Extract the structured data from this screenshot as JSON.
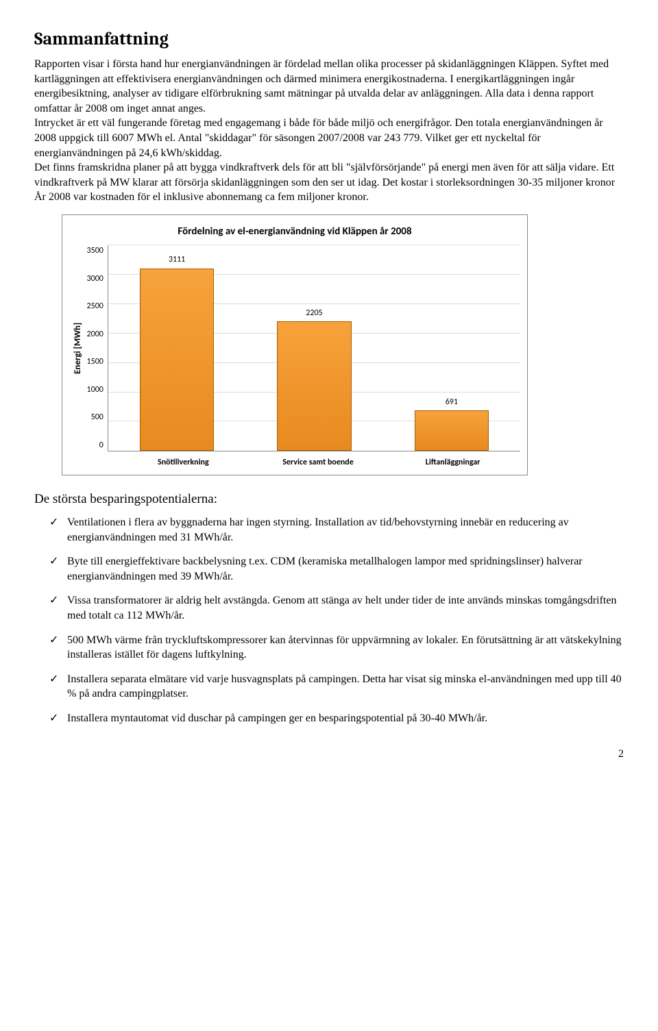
{
  "heading": "Sammanfattning",
  "paragraph": "Rapporten visar i första hand hur energianvändningen är fördelad mellan olika processer på skidanläggningen Kläppen. Syftet med kartläggningen att effektivisera energianvändningen och därmed minimera energikostnaderna. I energikartläggningen ingår energibesiktning, analyser av tidigare elförbrukning samt mätningar på utvalda delar av anläggningen. Alla data i denna rapport omfattar år 2008 om inget annat anges.\nIntrycket är ett väl fungerande företag med engagemang i både för både miljö och energifrågor. Den totala energianvändningen år 2008 uppgick till 6007 MWh el. Antal \"skiddagar\" för säsongen 2007/2008 var 243 779. Vilket ger ett nyckeltal för energianvändningen på 24,6 kWh/skiddag.\nDet finns framskridna planer på att bygga vindkraftverk dels för att bli \"självförsörjande\" på energi men även för att sälja vidare. Ett vindkraftverk på MW klarar att försörja skidanläggningen som den ser ut idag. Det kostar i storleksordningen 30-35 miljoner kronor År 2008 var kostnaden för el inklusive abonnemang ca fem miljoner kronor.",
  "chart": {
    "type": "bar",
    "title": "Fördelning av el-energianvändning vid Kläppen år  2008",
    "ylabel": "Energi [MWh]",
    "ylim": [
      0,
      3500
    ],
    "ytick_step": 500,
    "yticks": [
      "3500",
      "3000",
      "2500",
      "2000",
      "1500",
      "1000",
      "500",
      "0"
    ],
    "categories": [
      "Snötillverkning",
      "Service samt boende",
      "Liftanläggningar"
    ],
    "values": [
      3111,
      2205,
      691
    ],
    "bar_color_top": "#f7a23c",
    "bar_color_bottom": "#e88a1f",
    "bar_border": "#a65c00",
    "grid_color": "#dddddd",
    "axis_color": "#888888",
    "background_color": "#ffffff",
    "title_fontsize": 15,
    "label_fontsize": 12,
    "bar_width_pct": 18
  },
  "sub_heading": "De största besparingspotentialerna:",
  "bullets": [
    "Ventilationen i flera av byggnaderna har ingen styrning. Installation av tid/behovstyrning innebär en reducering av energianvändningen med 31 MWh/år.",
    "Byte till energieffektivare backbelysning t.ex. CDM (keramiska metallhalogen lampor med spridningslinser) halverar energianvändningen med 39 MWh/år.",
    "Vissa transformatorer är aldrig helt avstängda. Genom att stänga av helt under tider de inte används minskas tomgångsdriften med totalt ca 112 MWh/år.",
    "500 MWh värme från tryckluftskompressorer kan återvinnas för uppvärmning av lokaler. En förutsättning är att vätskekylning installeras istället för dagens luftkylning.",
    "Installera separata elmätare vid varje husvagnsplats på campingen. Detta har visat sig minska el-användningen med upp till 40 % på andra campingplatser.",
    "Installera myntautomat vid duschar på campingen ger en besparingspotential på 30-40 MWh/år."
  ],
  "page_number": "2"
}
